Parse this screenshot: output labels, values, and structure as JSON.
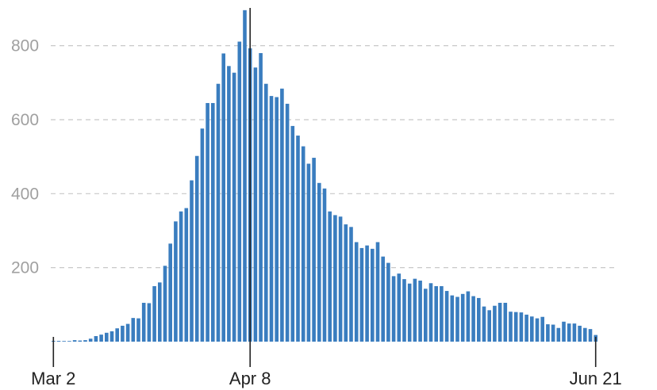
{
  "chart_data": {
    "type": "bar",
    "title": "",
    "xlabel": "",
    "ylabel": "",
    "x_start": "Mar 2",
    "x_end": "Jun 21",
    "ylim": [
      0,
      900
    ],
    "y_ticks": [
      200,
      400,
      600,
      800
    ],
    "x_ticks": [
      "Mar 2",
      "Apr 8",
      "Jun 21"
    ],
    "grid": true,
    "bar_color": "#3a7dbf",
    "values": [
      2,
      2,
      1,
      1,
      4,
      3,
      4,
      8,
      15,
      19,
      24,
      28,
      36,
      43,
      48,
      64,
      63,
      105,
      104,
      150,
      160,
      205,
      265,
      325,
      352,
      361,
      436,
      502,
      576,
      645,
      645,
      697,
      779,
      745,
      727,
      811,
      896,
      793,
      741,
      780,
      697,
      664,
      661,
      684,
      643,
      583,
      557,
      528,
      481,
      497,
      429,
      414,
      352,
      342,
      338,
      317,
      310,
      269,
      253,
      260,
      251,
      269,
      230,
      213,
      177,
      184,
      169,
      157,
      170,
      165,
      143,
      158,
      150,
      150,
      137,
      125,
      121,
      129,
      136,
      123,
      118,
      95,
      85,
      97,
      105,
      105,
      81,
      80,
      79,
      73,
      68,
      63,
      67,
      47,
      46,
      37,
      54,
      49,
      49,
      43,
      37,
      34,
      18
    ]
  }
}
